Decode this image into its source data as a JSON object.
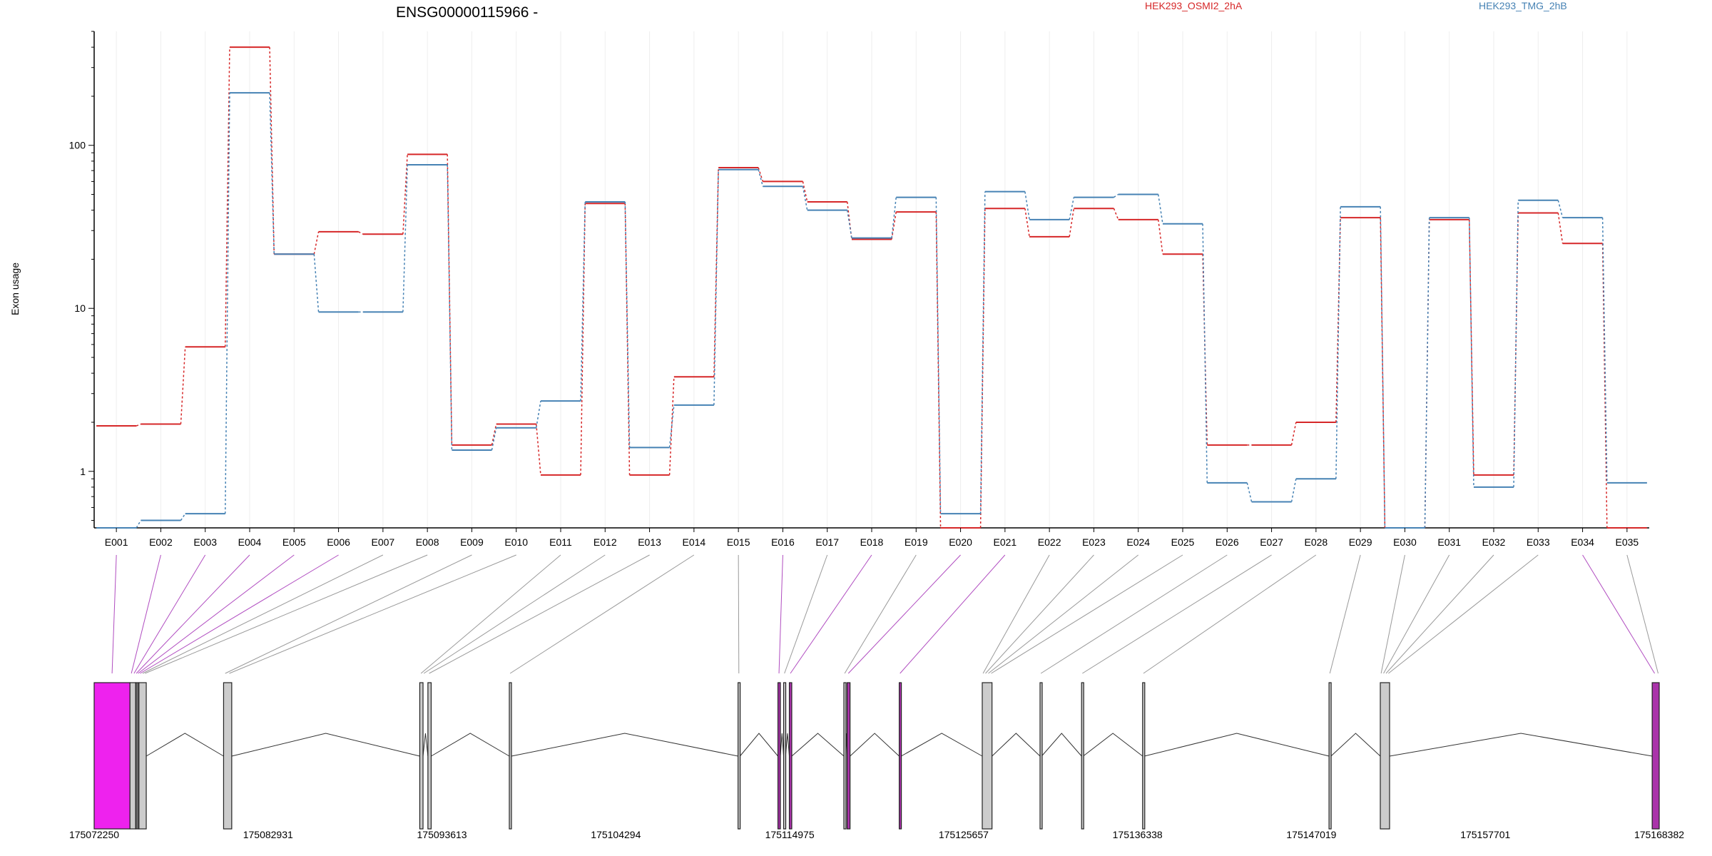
{
  "chart_data": {
    "type": "line",
    "gene_title": "ENSG00000115966 -",
    "ylabel": "Exon usage",
    "yscale": "log",
    "ylim": [
      0.45,
      500
    ],
    "y_ticks": [
      1,
      10,
      100
    ],
    "y_tick_labels": [
      "1",
      "10",
      "100"
    ],
    "grid": "vertical only",
    "legend_placement": "top",
    "categories": [
      "E001",
      "E002",
      "E003",
      "E004",
      "E005",
      "E006",
      "E007",
      "E008",
      "E009",
      "E010",
      "E011",
      "E012",
      "E013",
      "E014",
      "E015",
      "E016",
      "E017",
      "E018",
      "E019",
      "E020",
      "E021",
      "E022",
      "E023",
      "E024",
      "E025",
      "E026",
      "E027",
      "E028",
      "E029",
      "E030",
      "E031",
      "E032",
      "E033",
      "E034",
      "E035"
    ],
    "series": [
      {
        "name": "HEK293_OSMI2_2hA",
        "color": "#d62728",
        "values": [
          1.9,
          1.95,
          5.8,
          400,
          21.5,
          29.5,
          28.5,
          88,
          1.45,
          1.95,
          0.95,
          44,
          0.95,
          3.8,
          73,
          60,
          45,
          26.5,
          39,
          0.45,
          41,
          27.5,
          41,
          35,
          21.5,
          1.45,
          1.45,
          2.0,
          36,
          0.45,
          35,
          0.95,
          38.5,
          25,
          0.45
        ]
      },
      {
        "name": "HEK293_TMG_2hB",
        "color": "#4682b4",
        "values": [
          0.45,
          0.5,
          0.55,
          210,
          21.5,
          9.5,
          9.5,
          76,
          1.35,
          1.85,
          2.7,
          45,
          1.4,
          2.55,
          71,
          56,
          40,
          27,
          48,
          0.55,
          52,
          35,
          48,
          50,
          33,
          0.85,
          0.65,
          0.9,
          42,
          0.45,
          36,
          0.8,
          46,
          36,
          0.85
        ]
      }
    ],
    "gene_model": {
      "coordinate_labels": [
        "175072250",
        "175082931",
        "175093613",
        "175104294",
        "175114975",
        "175125657",
        "175136338",
        "175147019",
        "175157701",
        "175168382"
      ],
      "coordinate_ticks": [
        175072250,
        175082931,
        175093613,
        175104294,
        175114975,
        175125657,
        175136338,
        175147019,
        175157701,
        175168382
      ],
      "range": [
        175072250,
        175168382
      ],
      "highlight_color": "#ee22ee",
      "exons": [
        {
          "id": "E001",
          "start": 175072250,
          "end": 175074450,
          "hl": true
        },
        {
          "id": "E002",
          "start": 175074450,
          "end": 175074620,
          "hl": true
        },
        {
          "id": "E003",
          "start": 175074620,
          "end": 175074780,
          "hl": true
        },
        {
          "id": "E004",
          "start": 175074780,
          "end": 175074900,
          "hl": true
        },
        {
          "id": "E005",
          "start": 175074900,
          "end": 175075000,
          "hl": true
        },
        {
          "id": "E006",
          "start": 175075000,
          "end": 175075150,
          "hl": true
        },
        {
          "id": "E007",
          "start": 175075150,
          "end": 175075300,
          "hl": false
        },
        {
          "id": "E008",
          "start": 175075300,
          "end": 175075450,
          "hl": false
        },
        {
          "id": "E009",
          "start": 175080200,
          "end": 175080400,
          "hl": false
        },
        {
          "id": "E010",
          "start": 175080450,
          "end": 175080650,
          "hl": false
        },
        {
          "id": "E011",
          "start": 175092250,
          "end": 175092400,
          "hl": false
        },
        {
          "id": "E012",
          "start": 175092450,
          "end": 175092550,
          "hl": false
        },
        {
          "id": "E013",
          "start": 175092750,
          "end": 175092900,
          "hl": false
        },
        {
          "id": "E014",
          "start": 175097750,
          "end": 175097850,
          "hl": false
        },
        {
          "id": "E015",
          "start": 175111800,
          "end": 175111900,
          "hl": false
        },
        {
          "id": "E016",
          "start": 175114250,
          "end": 175114380,
          "hl": true
        },
        {
          "id": "E017",
          "start": 175114600,
          "end": 175114700,
          "hl": false
        },
        {
          "id": "E018",
          "start": 175114950,
          "end": 175115080,
          "hl": true
        },
        {
          "id": "E019",
          "start": 175118300,
          "end": 175118400,
          "hl": false
        },
        {
          "id": "E020",
          "start": 175118500,
          "end": 175118650,
          "hl": true
        },
        {
          "id": "E021",
          "start": 175121700,
          "end": 175121800,
          "hl": true
        },
        {
          "id": "E022",
          "start": 175126800,
          "end": 175126900,
          "hl": false
        },
        {
          "id": "E023",
          "start": 175126950,
          "end": 175127050,
          "hl": false
        },
        {
          "id": "E024",
          "start": 175127100,
          "end": 175127250,
          "hl": false
        },
        {
          "id": "E025",
          "start": 175127300,
          "end": 175127400,
          "hl": false
        },
        {
          "id": "E026",
          "start": 175130350,
          "end": 175130450,
          "hl": false
        },
        {
          "id": "E027",
          "start": 175132900,
          "end": 175133000,
          "hl": false
        },
        {
          "id": "E028",
          "start": 175136650,
          "end": 175136750,
          "hl": false
        },
        {
          "id": "E029",
          "start": 175148100,
          "end": 175148200,
          "hl": false
        },
        {
          "id": "E030",
          "start": 175151250,
          "end": 175151350,
          "hl": false
        },
        {
          "id": "E031",
          "start": 175151400,
          "end": 175151500,
          "hl": false
        },
        {
          "id": "E032",
          "start": 175151550,
          "end": 175151650,
          "hl": false
        },
        {
          "id": "E033",
          "start": 175151700,
          "end": 175151800,
          "hl": false
        },
        {
          "id": "E034",
          "start": 175167950,
          "end": 175168250,
          "hl": true
        },
        {
          "id": "E035",
          "start": 175168250,
          "end": 175168382,
          "hl": false
        }
      ],
      "blocks": [
        {
          "start": 175072250,
          "end": 175074450,
          "fill": "#ee22ee"
        },
        {
          "start": 175074450,
          "end": 175074800,
          "fill": "#cccccc"
        },
        {
          "start": 175074800,
          "end": 175075000,
          "fill": "#666666"
        },
        {
          "start": 175075000,
          "end": 175075450,
          "fill": "#cccccc"
        },
        {
          "start": 175080200,
          "end": 175080700,
          "fill": "#cccccc"
        },
        {
          "start": 175092250,
          "end": 175092450,
          "fill": "#cccccc"
        },
        {
          "start": 175092750,
          "end": 175092950,
          "fill": "#cccccc"
        },
        {
          "start": 175097750,
          "end": 175097880,
          "fill": "#cccccc"
        },
        {
          "start": 175111800,
          "end": 175111920,
          "fill": "#cccccc"
        },
        {
          "start": 175114250,
          "end": 175114400,
          "fill": "#aa33aa"
        },
        {
          "start": 175114600,
          "end": 175114720,
          "fill": "#cccccc"
        },
        {
          "start": 175114950,
          "end": 175115100,
          "fill": "#aa33aa"
        },
        {
          "start": 175118300,
          "end": 175118420,
          "fill": "#cccccc"
        },
        {
          "start": 175118500,
          "end": 175118680,
          "fill": "#aa33aa"
        },
        {
          "start": 175121700,
          "end": 175121820,
          "fill": "#aa33aa"
        },
        {
          "start": 175126800,
          "end": 175127400,
          "fill": "#cccccc"
        },
        {
          "start": 175130350,
          "end": 175130450,
          "fill": "#cccccc"
        },
        {
          "start": 175132900,
          "end": 175133000,
          "fill": "#cccccc"
        },
        {
          "start": 175136650,
          "end": 175136760,
          "fill": "#cccccc"
        },
        {
          "start": 175148100,
          "end": 175148220,
          "fill": "#cccccc"
        },
        {
          "start": 175151250,
          "end": 175151820,
          "fill": "#cccccc"
        },
        {
          "start": 175167950,
          "end": 175168382,
          "fill": "#aa33aa"
        }
      ],
      "introns": [
        [
          175075450,
          175080200
        ],
        [
          175080700,
          175092250
        ],
        [
          175092450,
          175092750
        ],
        [
          175092950,
          175097750
        ],
        [
          175097880,
          175111800
        ],
        [
          175111920,
          175114250
        ],
        [
          175114400,
          175114600
        ],
        [
          175114720,
          175114950
        ],
        [
          175115100,
          175118300
        ],
        [
          175118420,
          175118500
        ],
        [
          175118680,
          175121700
        ],
        [
          175121820,
          175126800
        ],
        [
          175127400,
          175130350
        ],
        [
          175130450,
          175132900
        ],
        [
          175133000,
          175136650
        ],
        [
          175136760,
          175148100
        ],
        [
          175148220,
          175151250
        ],
        [
          175151820,
          175167950
        ]
      ]
    }
  }
}
